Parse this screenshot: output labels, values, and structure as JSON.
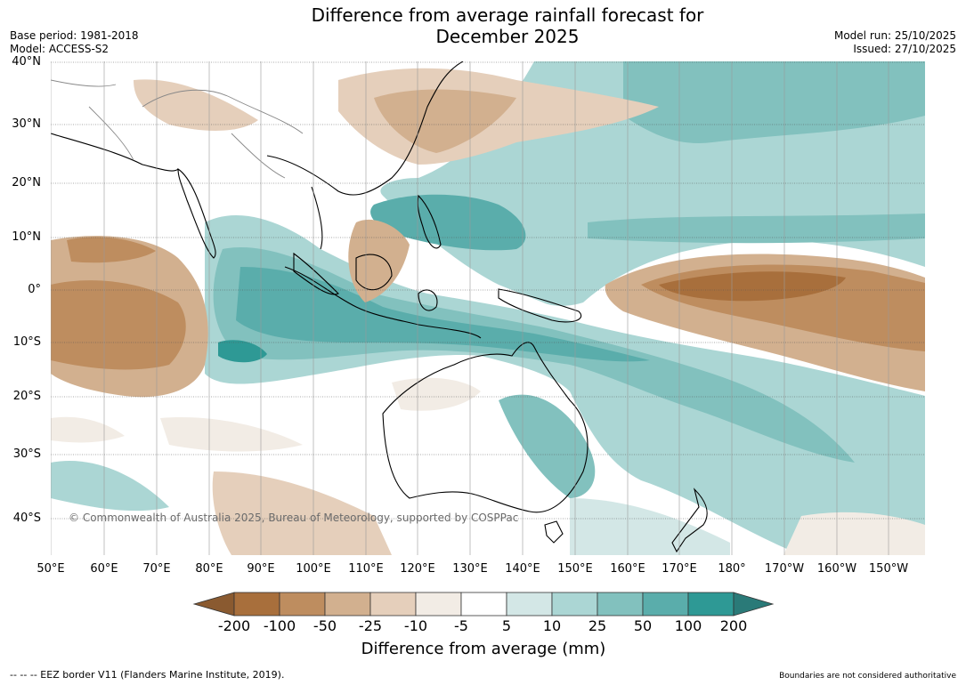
{
  "title_line1": "Difference from average rainfall forecast for",
  "title_line2": "December 2025",
  "meta_left": {
    "base_period": "Base period: 1981-2018",
    "model": "Model: ACCESS-S2"
  },
  "meta_right": {
    "model_run": "Model run: 25/10/2025",
    "issued": "Issued: 27/10/2025"
  },
  "lat_labels": [
    "40°N",
    "30°N",
    "20°N",
    "10°N",
    "0°",
    "10°S",
    "20°S",
    "30°S",
    "40°S"
  ],
  "lon_labels": [
    "50°E",
    "60°E",
    "70°E",
    "80°E",
    "90°E",
    "100°E",
    "110°E",
    "120°E",
    "130°E",
    "140°E",
    "150°E",
    "160°E",
    "170°E",
    "180°",
    "170°W",
    "160°W",
    "150°W"
  ],
  "copyright": "© Commonwealth of Australia 2025, Bureau of Meteorology, supported by COSPPac",
  "colorbar": {
    "ticks": [
      "-200",
      "-100",
      "-50",
      "-25",
      "-10",
      "-5",
      "5",
      "10",
      "25",
      "50",
      "100",
      "200"
    ],
    "colors": [
      "#a86f3c",
      "#be8d5f",
      "#d2b08f",
      "#e5cfbb",
      "#f2ece5",
      "#ffffff",
      "#d3e7e6",
      "#abd6d4",
      "#82c1be",
      "#5aadab",
      "#2e9995"
    ],
    "under_color": "#8a5a30",
    "over_color": "#2a7a78",
    "label": "Difference from average (mm)"
  },
  "footer_left": "--  --  -- EEZ border V11 (Flanders Marine Institute, 2019).",
  "footer_right": "Boundaries are not considered authoritative"
}
